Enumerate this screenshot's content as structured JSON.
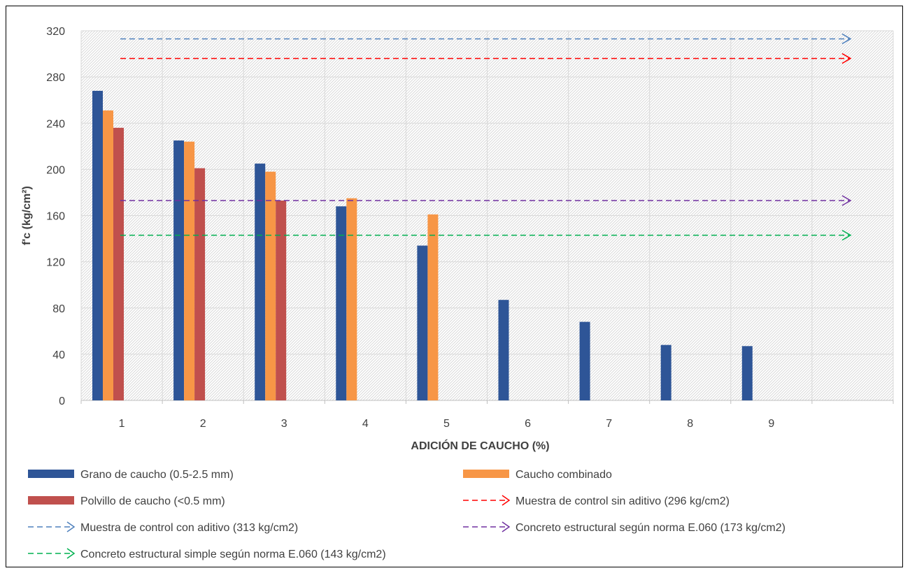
{
  "chart_data": {
    "type": "bar",
    "xlabel": "ADICIÓN DE CAUCHO (%)",
    "ylabel": "f'c (kg/cm²)",
    "categories": [
      "1",
      "2",
      "3",
      "4",
      "5",
      "6",
      "7",
      "8",
      "9"
    ],
    "ylim": [
      0,
      320
    ],
    "yticks": [
      "0",
      "40",
      "80",
      "120",
      "160",
      "200",
      "240",
      "280",
      "320"
    ],
    "grid": true,
    "legend_position": "bottom",
    "series": [
      {
        "name": "Grano de caucho (0.5-2.5 mm)",
        "color": "#2E5597",
        "values": [
          268,
          225,
          205,
          168,
          134,
          87,
          68,
          48,
          47
        ]
      },
      {
        "name": "Caucho combinado",
        "color": "#F79646",
        "values": [
          251,
          224,
          198,
          175,
          161,
          null,
          null,
          null,
          null
        ]
      },
      {
        "name": "Polvillo de caucho (<0.5 mm)",
        "color": "#C0504D",
        "values": [
          236,
          201,
          173,
          null,
          null,
          null,
          null,
          null,
          null
        ]
      }
    ],
    "reference_lines": [
      {
        "name": "Muestra de control sin aditivo (296 kg/cm2)",
        "value": 296,
        "color": "#FF0000"
      },
      {
        "name": "Muestra de control con aditivo (313 kg/cm2)",
        "value": 313,
        "color": "#4F81BD"
      },
      {
        "name": "Concreto estructural según norma E.060 (173 kg/cm2)",
        "value": 173,
        "color": "#7030A0"
      },
      {
        "name": "Concreto estructural simple según norma E.060 (143 kg/cm2)",
        "value": 143,
        "color": "#00B050"
      }
    ]
  }
}
